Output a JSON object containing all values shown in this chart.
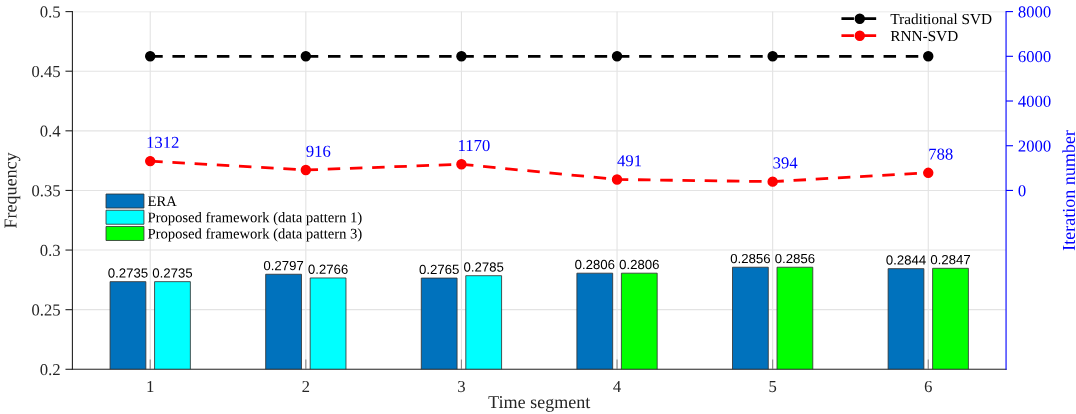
{
  "chart_data": {
    "type": "bar",
    "xlabel": "Time segment",
    "ylabel": "Frequency",
    "y2label": "Iteration number",
    "categories": [
      "1",
      "2",
      "3",
      "4",
      "5",
      "6"
    ],
    "ylim": [
      0.2,
      0.5
    ],
    "yticks": [
      0.2,
      0.25,
      0.3,
      0.35,
      0.4,
      0.45,
      0.5
    ],
    "y2lim": [
      -8000,
      8000
    ],
    "y2ticks": [
      0,
      2000,
      4000,
      6000,
      8000
    ],
    "grid": true,
    "legend": [
      "center left",
      "top right"
    ],
    "series": [
      {
        "name": "ERA",
        "color": "#0072bd",
        "values": [
          0.2735,
          0.2797,
          0.2765,
          0.2806,
          0.2856,
          0.2844
        ],
        "value_labels": [
          "0.2735",
          "0.2797",
          "0.2765",
          "0.2806",
          "0.2856",
          "0.2844"
        ]
      },
      {
        "name": "Proposed framework (data pattern 1)",
        "color": "#00ffff",
        "values": [
          0.2735,
          0.2766,
          0.2785,
          null,
          null,
          null
        ],
        "value_labels": [
          "0.2735",
          "0.2766",
          "0.2785",
          null,
          null,
          null
        ]
      },
      {
        "name": "Proposed framework (data pattern 3)",
        "color": "#00ff00",
        "values": [
          null,
          null,
          null,
          0.2806,
          0.2856,
          0.2847
        ],
        "value_labels": [
          null,
          null,
          null,
          "0.2806",
          "0.2856",
          "0.2847"
        ]
      },
      {
        "name": "Traditional SVD",
        "type": "line",
        "axis": "y2",
        "color": "#000000",
        "values": [
          6000,
          6000,
          6000,
          6000,
          6000,
          6000
        ],
        "marker": "circle",
        "line_style": "dashed"
      },
      {
        "name": "RNN-SVD",
        "type": "line",
        "axis": "y2",
        "color": "#ff0000",
        "values": [
          1312,
          916,
          1170,
          491,
          394,
          788
        ],
        "value_labels": [
          "1312",
          "916",
          "1170",
          "491",
          "394",
          "788"
        ],
        "marker": "circle",
        "line_style": "dashed"
      }
    ]
  }
}
